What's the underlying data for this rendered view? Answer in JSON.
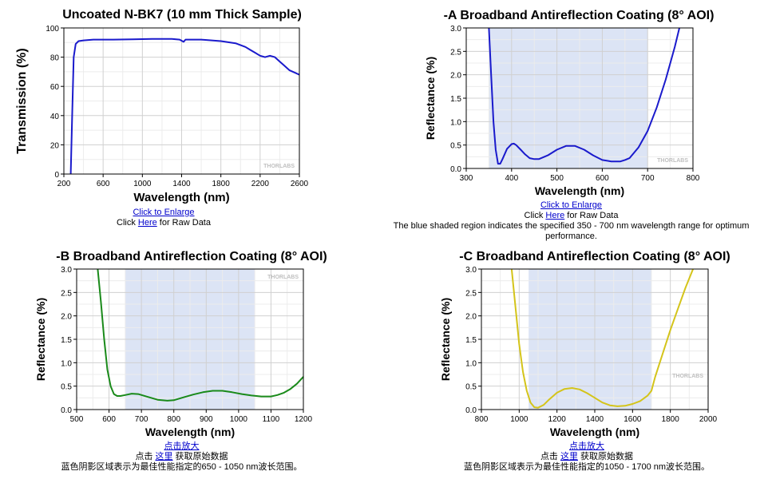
{
  "chart_data": [
    {
      "type": "line",
      "title": "Uncoated N-BK7 (10 mm Thick Sample)",
      "xlabel": "Wavelength (nm)",
      "ylabel": "Transmission (%)",
      "xlim": [
        200,
        2600
      ],
      "ylim": [
        0,
        100
      ],
      "xticks": [
        200,
        600,
        1000,
        1400,
        1800,
        2200,
        2600
      ],
      "yticks": [
        0,
        20,
        40,
        60,
        80,
        100
      ],
      "ytick_labels": [
        "0",
        "20",
        "40",
        "60",
        "80",
        "100"
      ],
      "grid": true,
      "line_color": "#1a1acc",
      "watermark": "THORLABS",
      "series": [
        {
          "x": [
            270,
            285,
            300,
            320,
            350,
            400,
            500,
            700,
            900,
            1100,
            1300,
            1380,
            1420,
            1440,
            1600,
            1800,
            1950,
            2050,
            2100,
            2150,
            2200,
            2250,
            2300,
            2350,
            2400,
            2450,
            2500,
            2550,
            2600
          ],
          "y": [
            0,
            40,
            80,
            89,
            91,
            91.5,
            92,
            92,
            92.2,
            92.5,
            92.5,
            92,
            90.5,
            92,
            92,
            91,
            89.5,
            87,
            85,
            83,
            81,
            80,
            81,
            80,
            77,
            74,
            71,
            69.5,
            68
          ]
        }
      ],
      "captions": {
        "enlarge": "Click to Enlarge",
        "raw_prefix": "Click ",
        "raw_link": "Here",
        "raw_suffix": " for Raw Data"
      }
    },
    {
      "type": "line",
      "title": "-A Broadband Antireflection Coating (8° AOI)",
      "xlabel": "Wavelength (nm)",
      "ylabel": "Reflectance (%)",
      "xlim": [
        300,
        800
      ],
      "ylim": [
        0,
        3
      ],
      "xticks": [
        300,
        400,
        500,
        600,
        700,
        800
      ],
      "yticks": [
        0,
        0.5,
        1,
        1.5,
        2,
        2.5,
        3
      ],
      "ytick_labels": [
        "0.0",
        "0.5",
        "1.0",
        "1.5",
        "2.0",
        "2.5",
        "3.0"
      ],
      "shaded_range": [
        350,
        700
      ],
      "grid": true,
      "line_color": "#1a1acc",
      "watermark": "THORLABS",
      "series": [
        {
          "x": [
            350,
            355,
            360,
            365,
            370,
            375,
            380,
            390,
            400,
            405,
            410,
            420,
            430,
            440,
            450,
            460,
            480,
            500,
            520,
            540,
            560,
            580,
            600,
            620,
            640,
            650,
            660,
            680,
            700,
            720,
            740,
            760,
            770
          ],
          "y": [
            3.0,
            2.0,
            1.0,
            0.4,
            0.1,
            0.1,
            0.2,
            0.42,
            0.52,
            0.53,
            0.5,
            0.4,
            0.3,
            0.22,
            0.2,
            0.2,
            0.28,
            0.4,
            0.48,
            0.48,
            0.4,
            0.28,
            0.18,
            0.15,
            0.15,
            0.18,
            0.22,
            0.45,
            0.8,
            1.3,
            1.9,
            2.6,
            3.0
          ]
        }
      ],
      "captions": {
        "enlarge": "Click to Enlarge",
        "raw_prefix": "Click ",
        "raw_link": "Here",
        "raw_suffix": " for Raw Data",
        "note": "The blue shaded region indicates the specified 350 - 700 nm wavelength range for optimum performance."
      }
    },
    {
      "type": "line",
      "title": "-B Broadband Antireflection Coating (8° AOI)",
      "xlabel": "Wavelength (nm)",
      "ylabel": "Reflectance (%)",
      "xlim": [
        500,
        1200
      ],
      "ylim": [
        0,
        3
      ],
      "xticks": [
        500,
        600,
        700,
        800,
        900,
        1000,
        1100,
        1200
      ],
      "yticks": [
        0,
        0.5,
        1,
        1.5,
        2,
        2.5,
        3
      ],
      "ytick_labels": [
        "0.0",
        "0.5",
        "1.0",
        "1.5",
        "2.0",
        "2.5",
        "3.0"
      ],
      "shaded_range": [
        650,
        1050
      ],
      "grid": true,
      "line_color": "#1a8a1a",
      "watermark": "THORLABS",
      "series": [
        {
          "x": [
            565,
            575,
            585,
            595,
            605,
            615,
            625,
            635,
            650,
            670,
            690,
            720,
            750,
            780,
            800,
            830,
            860,
            890,
            920,
            950,
            980,
            1010,
            1040,
            1070,
            1100,
            1120,
            1140,
            1160,
            1180,
            1200
          ],
          "y": [
            3.0,
            2.3,
            1.5,
            0.85,
            0.5,
            0.33,
            0.29,
            0.29,
            0.31,
            0.34,
            0.33,
            0.27,
            0.21,
            0.19,
            0.2,
            0.26,
            0.32,
            0.37,
            0.4,
            0.4,
            0.37,
            0.33,
            0.3,
            0.28,
            0.28,
            0.31,
            0.36,
            0.44,
            0.55,
            0.7
          ]
        }
      ],
      "captions": {
        "enlarge": "点击放大",
        "raw_prefix": "点击 ",
        "raw_link": "这里",
        "raw_suffix": " 获取原始数据",
        "note": "蓝色阴影区域表示为最佳性能指定的650 - 1050 nm波长范围。"
      }
    },
    {
      "type": "line",
      "title": "-C Broadband Antireflection Coating (8° AOI)",
      "xlabel": "Wavelength (nm)",
      "ylabel": "Reflectance (%)",
      "xlim": [
        800,
        2000
      ],
      "ylim": [
        0,
        3
      ],
      "xticks": [
        800,
        1000,
        1200,
        1400,
        1600,
        1800,
        2000
      ],
      "yticks": [
        0,
        0.5,
        1,
        1.5,
        2,
        2.5,
        3
      ],
      "ytick_labels": [
        "0.0",
        "0.5",
        "1.0",
        "1.5",
        "2.0",
        "2.5",
        "3.0"
      ],
      "shaded_range": [
        1050,
        1700
      ],
      "grid": true,
      "line_color": "#d4c41a",
      "watermark": "THORLABS",
      "series": [
        {
          "x": [
            960,
            980,
            1000,
            1020,
            1040,
            1060,
            1080,
            1100,
            1130,
            1160,
            1200,
            1240,
            1280,
            1320,
            1360,
            1400,
            1440,
            1480,
            1520,
            1560,
            1600,
            1640,
            1680,
            1700,
            1720,
            1760,
            1800,
            1840,
            1880,
            1920
          ],
          "y": [
            3.0,
            2.2,
            1.4,
            0.8,
            0.4,
            0.15,
            0.05,
            0.04,
            0.1,
            0.22,
            0.36,
            0.44,
            0.46,
            0.43,
            0.35,
            0.25,
            0.15,
            0.09,
            0.07,
            0.08,
            0.12,
            0.18,
            0.3,
            0.4,
            0.7,
            1.2,
            1.7,
            2.15,
            2.6,
            3.0
          ]
        }
      ],
      "captions": {
        "enlarge": "点击放大",
        "raw_prefix": "点击 ",
        "raw_link": "这里",
        "raw_suffix": " 获取原始数据",
        "note": "蓝色阴影区域表示为最佳性能指定的1050 - 1700 nm波长范围。"
      }
    }
  ]
}
